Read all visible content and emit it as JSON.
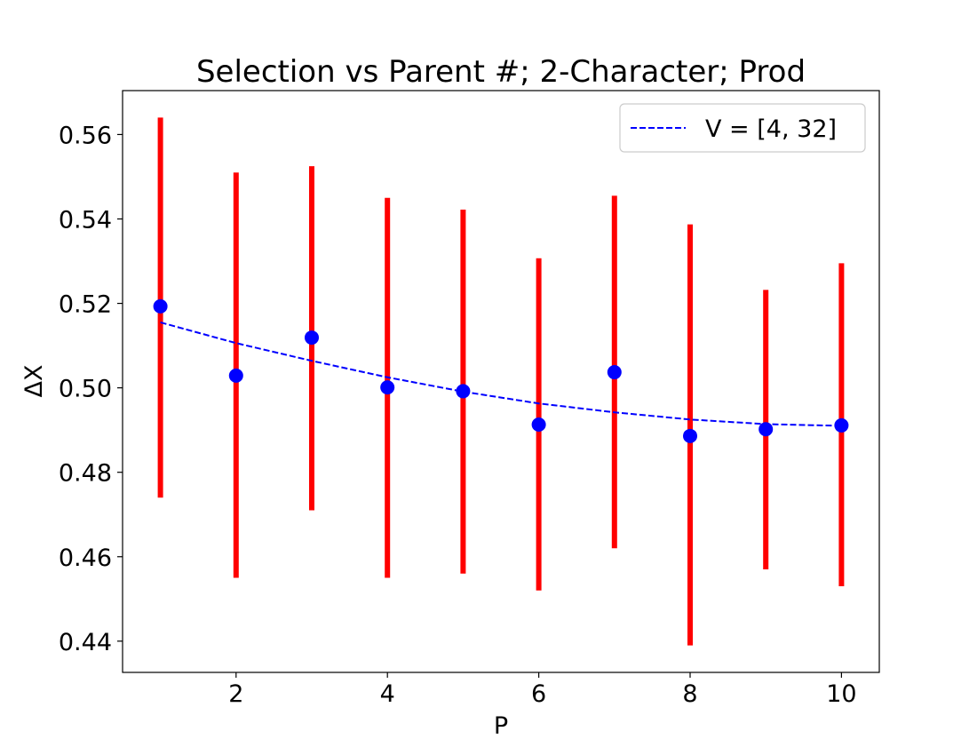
{
  "chart_data": {
    "type": "scatter",
    "title": "Selection vs Parent #; 2-Character; Prod",
    "xlabel": "P",
    "ylabel": "ΔX",
    "xlim": [
      0.5,
      10.5
    ],
    "ylim": [
      0.4326,
      0.5704
    ],
    "xticks": [
      2,
      4,
      6,
      8,
      10
    ],
    "yticks": [
      0.44,
      0.46,
      0.48,
      0.5,
      0.52,
      0.54,
      0.56
    ],
    "ytick_labels": [
      "0.44",
      "0.46",
      "0.48",
      "0.50",
      "0.52",
      "0.54",
      "0.56"
    ],
    "grid": false,
    "legend_position": "top-right",
    "points": {
      "color": "#0000ff",
      "x": [
        1,
        2,
        3,
        4,
        5,
        6,
        7,
        8,
        9,
        10
      ],
      "y": [
        0.5193,
        0.5029,
        0.5119,
        0.5001,
        0.4992,
        0.4913,
        0.5037,
        0.4886,
        0.4902,
        0.4911
      ]
    },
    "error_bars": {
      "color": "#ff0000",
      "x": [
        1,
        2,
        3,
        4,
        5,
        6,
        7,
        8,
        9,
        10
      ],
      "low": [
        0.474,
        0.455,
        0.471,
        0.455,
        0.456,
        0.452,
        0.462,
        0.439,
        0.457,
        0.453
      ],
      "high": [
        0.564,
        0.551,
        0.5525,
        0.545,
        0.5422,
        0.5307,
        0.5455,
        0.5387,
        0.5232,
        0.5295
      ]
    },
    "series": [
      {
        "name": "V = [4, 32]",
        "style": "dashed",
        "color": "#0000ff",
        "x": [
          1,
          2,
          3,
          4,
          5,
          6,
          7,
          8,
          9,
          10
        ],
        "y": [
          0.5155,
          0.5106,
          0.5064,
          0.5025,
          0.4991,
          0.4963,
          0.4942,
          0.4925,
          0.4914,
          0.491
        ]
      }
    ]
  }
}
